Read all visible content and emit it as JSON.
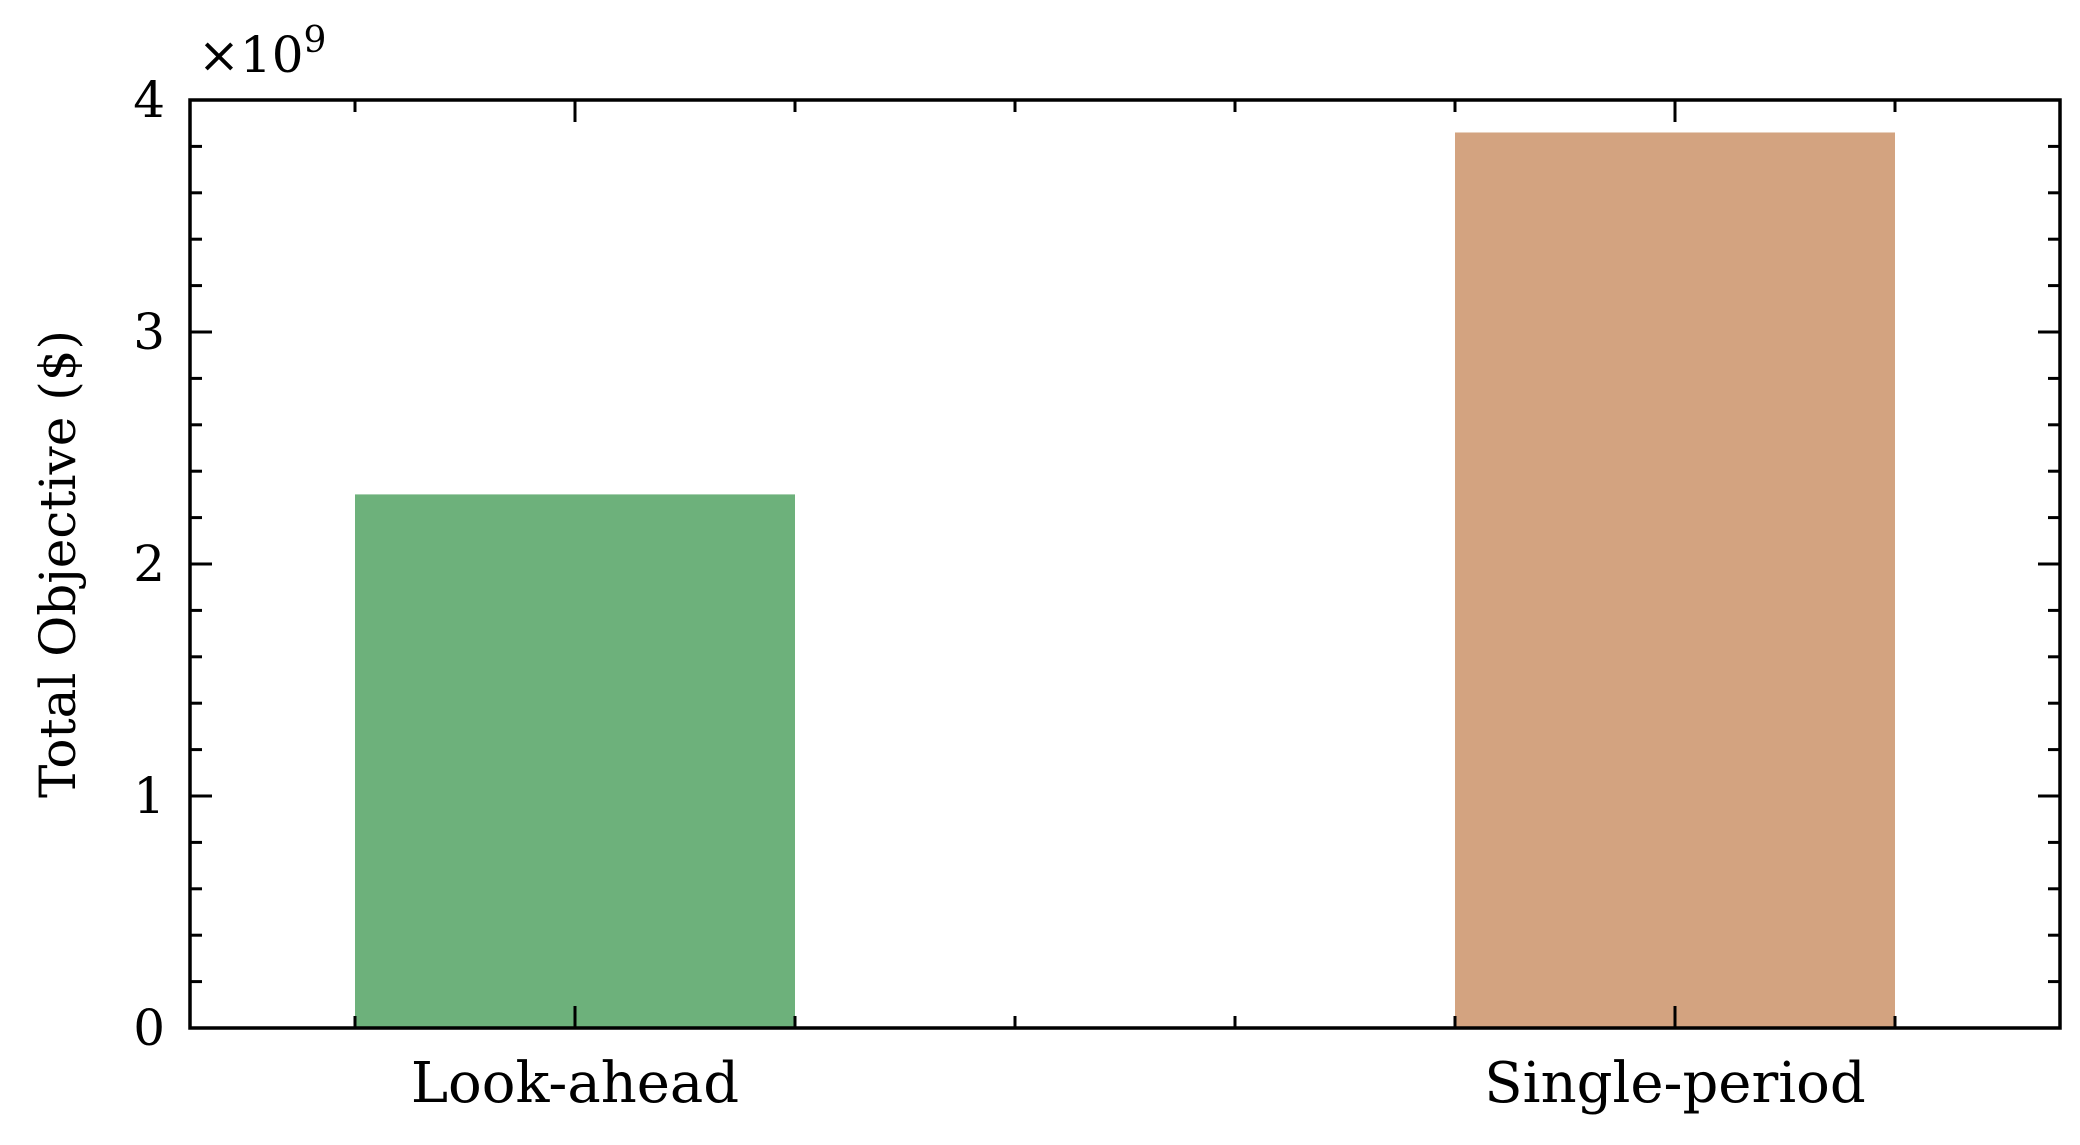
{
  "chart_data": {
    "type": "bar",
    "categories": [
      "Look-ahead",
      "Single-period"
    ],
    "values": [
      2300000000,
      3860000000
    ],
    "colors": [
      "#6db17b",
      "#d3a380"
    ],
    "title": "",
    "xlabel": "",
    "ylabel": "Total Objective ($)",
    "ylim": [
      0,
      4000000000
    ],
    "y_ticks": [
      "0",
      "1",
      "2",
      "3",
      "4"
    ],
    "y_tick_values": [
      0,
      1000000000,
      2000000000,
      3000000000,
      4000000000
    ],
    "y_exponent_base": "×10",
    "y_exponent_power": "9",
    "x_range": [
      -0.35,
      1.35
    ],
    "bar_width": 0.4,
    "x_minor_ticks": [
      -0.2,
      0.2,
      0.4,
      0.6,
      0.8,
      1.2
    ],
    "grid": false,
    "legend": "none"
  }
}
